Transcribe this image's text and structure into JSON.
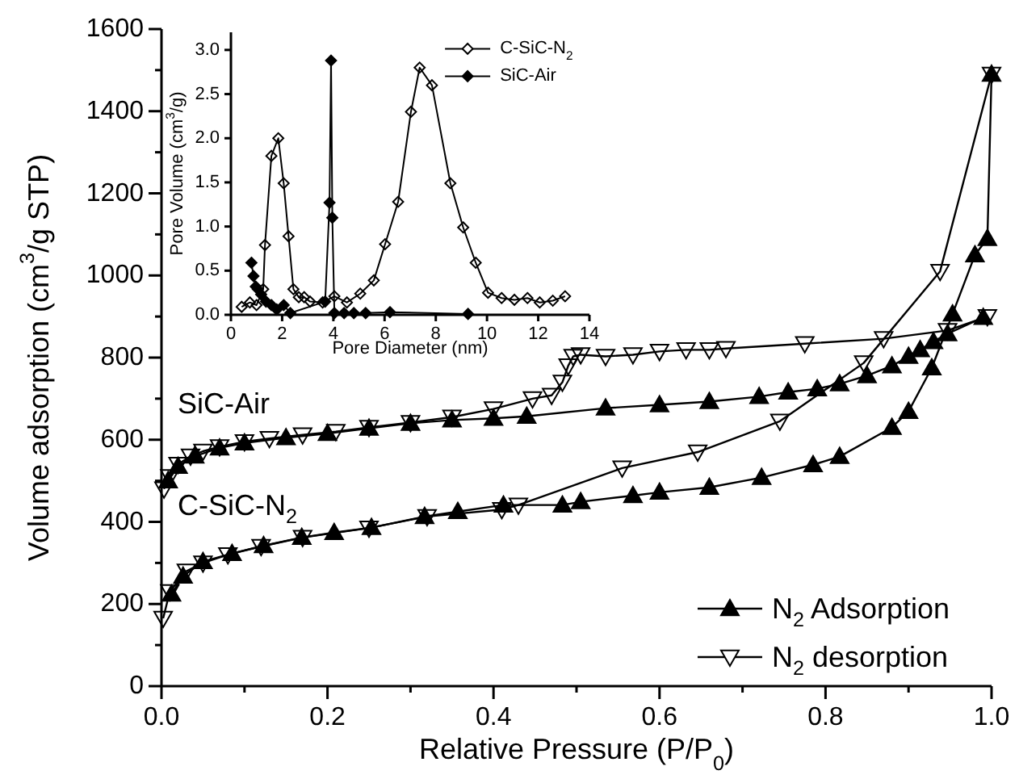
{
  "chart_data": [
    {
      "type": "line",
      "xlabel": "Relative Pressure (P/P$_{0}$)",
      "ylabel": "Volume adsorption (cm$^{3}$/g STP)",
      "xlim": [
        0,
        1
      ],
      "ylim": [
        0,
        1600
      ],
      "xticks": [
        {
          "value": 0,
          "label": "0.0"
        },
        {
          "value": 0.1,
          "label": null
        },
        0.2,
        {
          "value": 0.3,
          "label": null
        },
        0.4,
        {
          "value": 0.5,
          "label": null
        },
        0.6,
        {
          "value": 0.7,
          "label": null
        },
        0.8,
        {
          "value": 0.9,
          "label": null
        },
        {
          "value": 1,
          "label": "1.0"
        }
      ],
      "yticks": [
        0,
        {
          "value": 100,
          "label": null
        },
        200,
        {
          "value": 300,
          "label": null
        },
        400,
        {
          "value": 500,
          "label": null
        },
        600,
        {
          "value": 700,
          "label": null
        },
        800,
        {
          "value": 900,
          "label": null
        },
        1000,
        {
          "value": 1100,
          "label": null
        },
        1200,
        {
          "value": 1300,
          "label": null
        },
        1400,
        {
          "value": 1500,
          "label": null
        },
        1600
      ],
      "legend": "bottom right",
      "annotations": [
        "SiC-Air",
        "C-SiC-N$_{2}$"
      ],
      "series": [
        {
          "name": "N$_{2}$ Adsorption",
          "color": "#000000",
          "marker": "triangle",
          "x": [
            0.008,
            0.02,
            0.04,
            0.07,
            0.1,
            0.15,
            0.2,
            0.25,
            0.3,
            0.35,
            0.4,
            0.44,
            0.535,
            0.6,
            0.66,
            0.72,
            0.755,
            0.79,
            0.817,
            0.85,
            0.88,
            0.9,
            0.914,
            0.93,
            0.947,
            0.99
          ],
          "values": [
            500,
            535,
            560,
            580,
            592,
            605,
            615,
            628,
            640,
            648,
            652,
            657,
            677,
            685,
            693,
            705,
            716,
            724,
            736,
            756,
            780,
            803,
            819,
            839,
            858,
            898
          ]
        },
        {
          "name": "N$_{2}$ desorption",
          "color": "#000000",
          "marker": "triangle-down-open",
          "x": [
            0.003,
            0.01,
            0.02,
            0.035,
            0.05,
            0.07,
            0.1,
            0.13,
            0.17,
            0.21,
            0.25,
            0.3,
            0.35,
            0.4,
            0.447,
            0.47,
            0.483,
            0.49,
            0.496,
            0.505,
            0.535,
            0.568,
            0.6,
            0.632,
            0.66,
            0.68,
            0.775,
            0.87,
            0.947,
            0.995
          ],
          "values": [
            480,
            510,
            540,
            560,
            572,
            583,
            595,
            603,
            612,
            620,
            630,
            642,
            655,
            675,
            700,
            708,
            740,
            780,
            803,
            807,
            803,
            807,
            815,
            819,
            819,
            822,
            834,
            846,
            866,
            900
          ]
        },
        {
          "color": "#000000",
          "marker": "triangle",
          "x": [
            0.012,
            0.026,
            0.05,
            0.085,
            0.123,
            0.169,
            0.208,
            0.253,
            0.317,
            0.357,
            0.412,
            0.483,
            0.505,
            0.568,
            0.6,
            0.66,
            0.723,
            0.785,
            0.817,
            0.88,
            0.9,
            0.928,
            0.953,
            0.98,
            0.995,
            1
          ],
          "values": [
            224,
            268,
            303,
            323,
            342,
            362,
            374,
            386,
            413,
            425,
            441,
            441,
            449,
            464,
            472,
            484,
            508,
            539,
            559,
            630,
            669,
            775,
            906,
            1050,
            1090,
            1490
          ]
        },
        {
          "color": "#000000",
          "marker": "triangle-down-open",
          "x": [
            0.002,
            0.01,
            0.03,
            0.05,
            0.08,
            0.12,
            0.17,
            0.25,
            0.32,
            0.41,
            0.43,
            0.555,
            0.646,
            0.745,
            0.846,
            0.938,
            1
          ],
          "values": [
            165,
            230,
            280,
            300,
            320,
            340,
            362,
            385,
            413,
            430,
            441,
            531,
            570,
            645,
            787,
            1010,
            1490
          ]
        }
      ]
    },
    {
      "type": "line",
      "xlabel": "Pore Diameter (nm)",
      "ylabel": "Pore Volume (cm$^{3}$/g)",
      "xlim": [
        0,
        14
      ],
      "ylim": [
        0,
        3.2
      ],
      "xticks": [
        0,
        2,
        4,
        6,
        8,
        10,
        12,
        14
      ],
      "yticks": [
        {
          "value": 0,
          "label": "0.0"
        },
        {
          "value": 0.5,
          "label": "0.5"
        },
        {
          "value": 1,
          "label": "1.0"
        },
        {
          "value": 1.5,
          "label": "1.5"
        },
        {
          "value": 2,
          "label": "2.0"
        },
        {
          "value": 2.5,
          "label": "2.5"
        },
        {
          "value": 3,
          "label": "3.0"
        }
      ],
      "legend": "top right",
      "series": [
        {
          "name": "C-SiC-N$_{2}$",
          "color": "#000000",
          "marker": "diamond-open",
          "x": [
            0.42,
            0.74,
            1.0,
            1.26,
            1.33,
            1.58,
            1.85,
            2.06,
            2.25,
            2.44,
            2.65,
            2.86,
            3.09,
            3.58,
            4.04,
            4.53,
            5.05,
            5.58,
            6.02,
            6.53,
            7.03,
            7.37,
            7.85,
            8.57,
            9.07,
            9.56,
            10.04,
            10.57,
            11.07,
            11.58,
            12.06,
            12.57,
            13.05
          ],
          "values": [
            0.09,
            0.14,
            0.11,
            0.29,
            0.79,
            1.8,
            2.0,
            1.49,
            0.89,
            0.29,
            0.2,
            0.2,
            0.15,
            0.14,
            0.21,
            0.14,
            0.24,
            0.39,
            0.8,
            1.28,
            2.3,
            2.8,
            2.6,
            1.49,
            0.99,
            0.59,
            0.25,
            0.19,
            0.17,
            0.19,
            0.14,
            0.16,
            0.21
          ]
        },
        {
          "name": "SiC-Air",
          "color": "#000000",
          "marker": "diamond",
          "x": [
            0.8,
            0.88,
            0.97,
            1.05,
            1.18,
            1.37,
            1.58,
            1.79,
            2.06,
            2.32,
            3.68,
            3.85,
            3.91,
            3.96,
            4.04,
            4.42,
            4.8,
            5.26,
            6.21,
            9.26
          ],
          "values": [
            0.59,
            0.44,
            0.32,
            0.29,
            0.23,
            0.15,
            0.11,
            0.06,
            0.11,
            0.02,
            0.15,
            1.27,
            2.88,
            1.1,
            0.02,
            0.02,
            0.02,
            0.02,
            0.03,
            0.01
          ]
        }
      ]
    }
  ]
}
